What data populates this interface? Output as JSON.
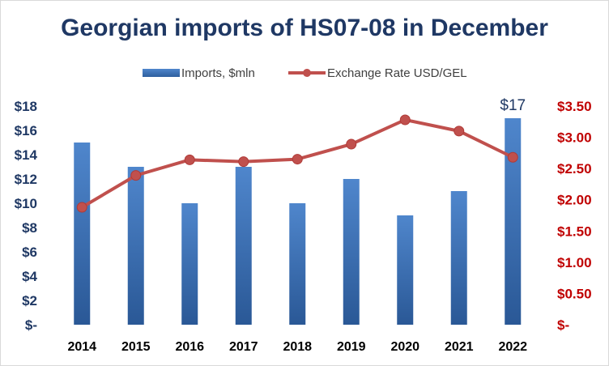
{
  "chart_data": {
    "type": "bar",
    "title": "Georgian imports of HS07-08 in December",
    "categories": [
      "2014",
      "2015",
      "2016",
      "2017",
      "2018",
      "2019",
      "2020",
      "2021",
      "2022"
    ],
    "series": [
      {
        "name": "Imports, $mln",
        "type": "bar",
        "axis": "left",
        "color": "#3b73b9",
        "values": [
          15,
          13,
          10,
          13,
          10,
          12,
          9,
          11,
          17
        ]
      },
      {
        "name": "Exchange Rate USD/GEL",
        "type": "line",
        "axis": "right",
        "color": "#c0504d",
        "values": [
          1.88,
          2.39,
          2.64,
          2.61,
          2.65,
          2.89,
          3.28,
          3.1,
          2.68
        ]
      }
    ],
    "y_left": {
      "range": [
        0,
        18
      ],
      "ticks": [
        "$-",
        "$2",
        "$4",
        "$6",
        "$8",
        "$10",
        "$12",
        "$14",
        "$16",
        "$18"
      ]
    },
    "y_right": {
      "range": [
        0,
        3.5
      ],
      "ticks": [
        "$-",
        "$0.50",
        "$1.00",
        "$1.50",
        "$2.00",
        "$2.50",
        "$3.00",
        "$3.50"
      ]
    },
    "data_labels": [
      {
        "category": "2022",
        "series": "Imports, $mln",
        "text": "$17"
      }
    ],
    "legend_position": "top",
    "grid": false
  }
}
